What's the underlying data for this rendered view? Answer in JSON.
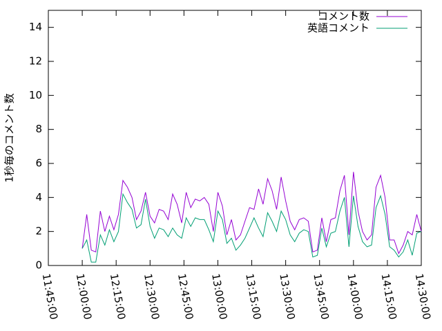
{
  "chart_data": {
    "type": "line",
    "ylabel": "1秒毎のコメント数",
    "x": [
      "12:00:00",
      "12:02:00",
      "12:04:00",
      "12:06:00",
      "12:08:00",
      "12:10:00",
      "12:12:00",
      "12:14:00",
      "12:16:00",
      "12:18:00",
      "12:20:00",
      "12:22:00",
      "12:24:00",
      "12:26:00",
      "12:28:00",
      "12:30:00",
      "12:32:00",
      "12:34:00",
      "12:36:00",
      "12:38:00",
      "12:40:00",
      "12:42:00",
      "12:44:00",
      "12:46:00",
      "12:48:00",
      "12:50:00",
      "12:52:00",
      "12:54:00",
      "12:56:00",
      "12:58:00",
      "13:00:00",
      "13:02:00",
      "13:04:00",
      "13:06:00",
      "13:08:00",
      "13:10:00",
      "13:12:00",
      "13:14:00",
      "13:16:00",
      "13:18:00",
      "13:20:00",
      "13:22:00",
      "13:24:00",
      "13:26:00",
      "13:28:00",
      "13:30:00",
      "13:32:00",
      "13:34:00",
      "13:36:00",
      "13:38:00",
      "13:40:00",
      "13:42:00",
      "13:44:00",
      "13:46:00",
      "13:48:00",
      "13:50:00",
      "13:52:00",
      "13:54:00",
      "13:56:00",
      "13:58:00",
      "14:00:00",
      "14:02:00",
      "14:04:00",
      "14:06:00",
      "14:08:00",
      "14:10:00",
      "14:12:00",
      "14:14:00",
      "14:16:00",
      "14:18:00",
      "14:20:00",
      "14:22:00",
      "14:24:00",
      "14:26:00",
      "14:28:00",
      "14:30:00"
    ],
    "series": [
      {
        "name": "コメント数",
        "color": "#9400d3",
        "values": [
          1.0,
          3.0,
          0.9,
          0.8,
          3.2,
          2.0,
          2.9,
          2.1,
          3.0,
          5.0,
          4.6,
          4.0,
          2.7,
          3.2,
          4.3,
          2.9,
          2.5,
          3.3,
          3.2,
          2.7,
          4.2,
          3.6,
          2.5,
          4.3,
          3.4,
          3.9,
          3.8,
          4.0,
          3.6,
          2.0,
          4.3,
          3.5,
          1.8,
          2.7,
          1.5,
          1.8,
          2.6,
          3.4,
          3.3,
          4.5,
          3.6,
          5.1,
          4.4,
          3.3,
          5.2,
          3.8,
          2.6,
          2.1,
          2.7,
          2.8,
          2.6,
          0.8,
          0.9,
          2.8,
          1.4,
          2.7,
          2.8,
          4.4,
          5.3,
          1.8,
          5.5,
          3.2,
          2.0,
          1.5,
          1.8,
          4.6,
          5.3,
          4.0,
          1.5,
          1.5,
          0.7,
          1.2,
          2.0,
          1.8,
          3.0,
          2.0
        ]
      },
      {
        "name": "英語コメント",
        "color": "#009e73",
        "values": [
          1.0,
          1.5,
          0.2,
          0.2,
          1.8,
          1.2,
          2.1,
          1.4,
          2.0,
          4.2,
          3.7,
          3.3,
          2.2,
          2.4,
          3.9,
          2.3,
          1.6,
          2.2,
          2.1,
          1.7,
          2.2,
          1.8,
          1.6,
          2.8,
          2.3,
          2.8,
          2.7,
          2.7,
          2.1,
          1.4,
          3.2,
          2.7,
          1.3,
          1.6,
          0.9,
          1.2,
          1.6,
          2.2,
          2.8,
          2.2,
          1.7,
          3.1,
          2.6,
          2.0,
          3.2,
          2.7,
          1.8,
          1.4,
          1.9,
          2.1,
          2.0,
          0.5,
          0.6,
          2.2,
          1.1,
          1.9,
          2.0,
          3.2,
          4.0,
          1.1,
          4.1,
          2.3,
          1.4,
          1.1,
          1.2,
          3.4,
          4.1,
          3.0,
          1.1,
          0.9,
          0.5,
          0.8,
          1.5,
          0.6,
          1.9,
          2.0
        ]
      }
    ],
    "xlim": [
      "11:45:00",
      "14:30:00"
    ],
    "xticks": [
      "11:45:00",
      "12:00:00",
      "12:15:00",
      "12:30:00",
      "12:45:00",
      "13:00:00",
      "13:15:00",
      "13:30:00",
      "13:45:00",
      "14:00:00",
      "14:15:00",
      "14:30:00"
    ],
    "ylim": [
      0,
      15
    ],
    "yticks": [
      0,
      2,
      4,
      6,
      8,
      10,
      12,
      14
    ],
    "legend": "top-right"
  }
}
